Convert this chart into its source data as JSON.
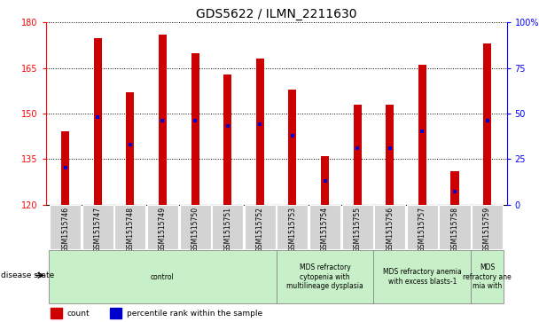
{
  "title": "GDS5622 / ILMN_2211630",
  "samples": [
    "GSM1515746",
    "GSM1515747",
    "GSM1515748",
    "GSM1515749",
    "GSM1515750",
    "GSM1515751",
    "GSM1515752",
    "GSM1515753",
    "GSM1515754",
    "GSM1515755",
    "GSM1515756",
    "GSM1515757",
    "GSM1515758",
    "GSM1515759"
  ],
  "counts": [
    144,
    175,
    157,
    176,
    170,
    163,
    168,
    158,
    136,
    153,
    153,
    166,
    131,
    173
  ],
  "percentile_ranks": [
    20,
    48,
    33,
    46,
    46,
    43,
    44,
    38,
    13,
    31,
    31,
    40,
    7,
    46
  ],
  "ylim_left": [
    120,
    180
  ],
  "ylim_right": [
    0,
    100
  ],
  "yticks_left": [
    120,
    135,
    150,
    165,
    180
  ],
  "yticks_right": [
    0,
    25,
    50,
    75,
    100
  ],
  "bar_color": "#cc0000",
  "percentile_color": "#0000cc",
  "background_color": "#ffffff",
  "grid_color": "#000000",
  "disease_states": [
    {
      "label": "control",
      "start": 0,
      "end": 7
    },
    {
      "label": "MDS refractory\ncytopenia with\nmultilineage dysplasia",
      "start": 7,
      "end": 10
    },
    {
      "label": "MDS refractory anemia\nwith excess blasts-1",
      "start": 10,
      "end": 13
    },
    {
      "label": "MDS\nrefractory ane\nmia with",
      "start": 13,
      "end": 14
    }
  ],
  "disease_box_color": "#c8f0c8",
  "disease_box_edge": "#888888",
  "disease_state_label": "disease state",
  "title_fontsize": 10,
  "tick_fontsize": 7,
  "sample_fontsize": 5.5,
  "disease_fontsize": 5.5,
  "legend_fontsize": 6.5,
  "bar_width": 0.25
}
